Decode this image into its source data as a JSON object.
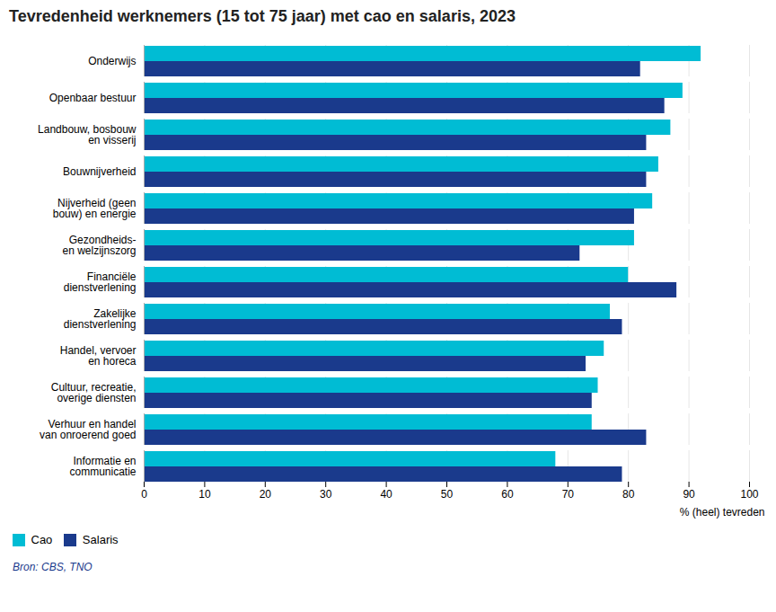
{
  "chart_data": {
    "type": "bar",
    "orientation": "horizontal",
    "title": "Tevredenheid werknemers (15 tot 75 jaar) met cao en salaris, 2023",
    "categories": [
      "Onderwijs",
      "Openbaar bestuur",
      "Landbouw, bosbouw\nen visserij",
      "Bouwnijverheid",
      "Nijverheid (geen\nbouw) en energie",
      "Gezondheids-\nen welzijnszorg",
      "Financiële\ndienstverlening",
      "Zakelijke\ndienstverlening",
      "Handel, vervoer\nen horeca",
      "Cultuur, recreatie,\noverige diensten",
      "Verhuur en handel\nvan onroerend goed",
      "Informatie en\ncommunicatie"
    ],
    "series": [
      {
        "name": "Cao",
        "color": "#00BCD4",
        "values": [
          92,
          89,
          87,
          85,
          84,
          81,
          80,
          77,
          76,
          75,
          74,
          68
        ]
      },
      {
        "name": "Salaris",
        "color": "#1A3A8C",
        "values": [
          82,
          86,
          83,
          83,
          81,
          72,
          88,
          79,
          73,
          74,
          83,
          79
        ]
      }
    ],
    "xlabel": "% (heel) tevreden",
    "xlim": [
      0,
      100
    ],
    "xticks": [
      0,
      10,
      20,
      30,
      40,
      50,
      60,
      70,
      80,
      90,
      100
    ],
    "grid": true,
    "legend": "bottom",
    "source": "Bron: CBS, TNO"
  }
}
